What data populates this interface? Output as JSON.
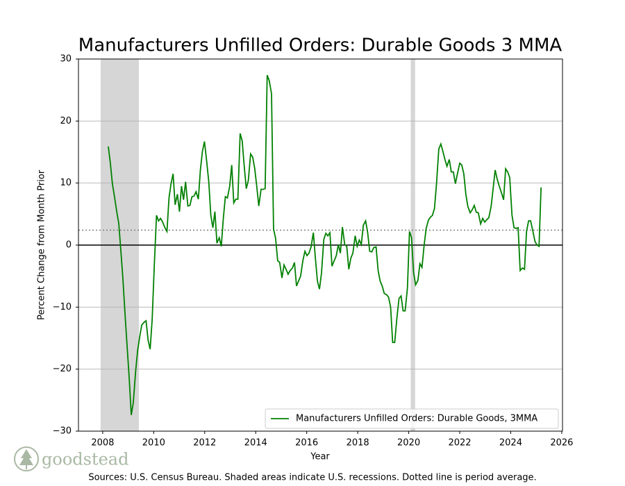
{
  "chart_data": {
    "type": "line",
    "title": "Manufacturers Unfilled Orders: Durable Goods 3 MMA",
    "xlabel": "Year",
    "ylabel": "Percent Change from Month Prior",
    "note": "Sources: U.S. Census Bureau. Shaded areas indicate U.S. recessions. Dotted line is period average.",
    "logo": "goodstead",
    "xlim": [
      2007.05,
      2026.03
    ],
    "ylim": [
      -30,
      30
    ],
    "xticks": [
      2008,
      2010,
      2012,
      2014,
      2016,
      2018,
      2020,
      2022,
      2024,
      2026
    ],
    "yticks": [
      {
        "value": -30,
        "label": "−30"
      },
      {
        "value": -20,
        "label": "−20"
      },
      {
        "value": -10,
        "label": "−10"
      },
      0,
      10,
      20,
      30
    ],
    "grid": "y",
    "legend": "lower right",
    "average": 2.4,
    "recessions": [
      [
        2007.92,
        2009.42
      ],
      [
        2020.08,
        2020.25
      ]
    ],
    "recession_color": "#d6d6d6",
    "series": [
      {
        "name": "Manufacturers Unfilled Orders: Durable Goods, 3MMA",
        "color": "#008000",
        "x": [
          2008.22,
          2008.3,
          2008.38,
          2008.47,
          2008.55,
          2008.63,
          2008.71,
          2008.79,
          2008.88,
          2008.96,
          2009.04,
          2009.12,
          2009.2,
          2009.29,
          2009.37,
          2009.45,
          2009.53,
          2009.61,
          2009.7,
          2009.78,
          2009.86,
          2009.94,
          2010.02,
          2010.11,
          2010.19,
          2010.27,
          2010.35,
          2010.43,
          2010.52,
          2010.6,
          2010.68,
          2010.76,
          2010.84,
          2010.93,
          2011.01,
          2011.09,
          2011.17,
          2011.25,
          2011.34,
          2011.42,
          2011.5,
          2011.58,
          2011.66,
          2011.75,
          2011.83,
          2011.91,
          2011.99,
          2012.07,
          2012.16,
          2012.24,
          2012.32,
          2012.4,
          2012.48,
          2012.57,
          2012.65,
          2012.73,
          2012.81,
          2012.89,
          2012.98,
          2013.06,
          2013.14,
          2013.22,
          2013.3,
          2013.39,
          2013.47,
          2013.55,
          2013.63,
          2013.71,
          2013.8,
          2013.88,
          2013.96,
          2014.04,
          2014.12,
          2014.21,
          2014.29,
          2014.37,
          2014.45,
          2014.53,
          2014.62,
          2014.7,
          2014.78,
          2014.86,
          2014.94,
          2015.03,
          2015.11,
          2015.19,
          2015.27,
          2015.35,
          2015.44,
          2015.52,
          2015.6,
          2015.68,
          2015.76,
          2015.85,
          2015.93,
          2016.01,
          2016.09,
          2016.17,
          2016.26,
          2016.34,
          2016.42,
          2016.5,
          2016.58,
          2016.67,
          2016.75,
          2016.83,
          2016.91,
          2016.99,
          2017.08,
          2017.16,
          2017.24,
          2017.32,
          2017.4,
          2017.49,
          2017.57,
          2017.65,
          2017.73,
          2017.81,
          2017.9,
          2017.98,
          2018.06,
          2018.14,
          2018.22,
          2018.31,
          2018.39,
          2018.47,
          2018.55,
          2018.63,
          2018.72,
          2018.8,
          2018.88,
          2018.96,
          2019.04,
          2019.13,
          2019.21,
          2019.29,
          2019.37,
          2019.45,
          2019.54,
          2019.62,
          2019.7,
          2019.78,
          2019.86,
          2019.95,
          2020.03,
          2020.11,
          2020.19,
          2020.27,
          2020.36,
          2020.44,
          2020.52,
          2020.6,
          2020.68,
          2020.77,
          2020.85,
          2020.93,
          2021.01,
          2021.09,
          2021.18,
          2021.26,
          2021.34,
          2021.42,
          2021.5,
          2021.59,
          2021.67,
          2021.75,
          2021.83,
          2021.91,
          2022,
          2022.08,
          2022.16,
          2022.24,
          2022.32,
          2022.41,
          2022.49,
          2022.57,
          2022.65,
          2022.73,
          2022.82,
          2022.9,
          2022.98,
          2023.06,
          2023.14,
          2023.23,
          2023.31,
          2023.39,
          2023.47,
          2023.55,
          2023.64,
          2023.72,
          2023.8,
          2023.88,
          2023.96,
          2024.05,
          2024.13,
          2024.21,
          2024.29,
          2024.37,
          2024.46,
          2024.54,
          2024.62,
          2024.7,
          2024.78,
          2024.87,
          2024.95,
          2025.03,
          2025.11,
          2025.19
        ],
        "values": [
          15.9,
          13.2,
          9.9,
          7.6,
          5.4,
          3.5,
          -0.8,
          -5.3,
          -11.4,
          -16.5,
          -21.5,
          -27.4,
          -25.4,
          -20.4,
          -17,
          -14.8,
          -12.9,
          -12.5,
          -12.2,
          -15.3,
          -16.8,
          -12,
          -3.6,
          4.8,
          3.9,
          4.3,
          3.7,
          2.9,
          2.2,
          7.6,
          9.9,
          11.5,
          6.5,
          8.2,
          5.4,
          9.5,
          7.3,
          10.2,
          6.3,
          6.4,
          7.8,
          7.9,
          8.6,
          7.4,
          12.1,
          15.1,
          16.7,
          13.8,
          10.2,
          4.8,
          2.8,
          5.4,
          0.3,
          1.2,
          -0.2,
          4.3,
          7.8,
          7.6,
          9.5,
          12.9,
          6.8,
          7.4,
          7.4,
          18,
          16.8,
          12.7,
          9.1,
          10.4,
          14.7,
          14.2,
          12.4,
          9.5,
          6.3,
          9,
          9,
          9.1,
          27.4,
          26.5,
          24.4,
          2.6,
          1.1,
          -2.5,
          -2.8,
          -5.3,
          -3.2,
          -3.9,
          -4.7,
          -4.1,
          -3.7,
          -2.8,
          -6.6,
          -5.8,
          -5,
          -2.5,
          -1,
          -1.7,
          -1.3,
          -0.3,
          2,
          -2.1,
          -5.8,
          -7.1,
          -4.5,
          0.9,
          1.9,
          1.5,
          2,
          -3.4,
          -2.5,
          -1.7,
          0.1,
          -1.3,
          2.9,
          0.1,
          -0.2,
          -3.9,
          -2.1,
          -1.3,
          1.5,
          -0.2,
          0.8,
          0.1,
          3.2,
          3.9,
          2,
          -1,
          -1.1,
          -0.4,
          -0.3,
          -4.1,
          -5.8,
          -6.6,
          -7.8,
          -8,
          -8.4,
          -10,
          -15.7,
          -15.7,
          -11.6,
          -8.6,
          -8.2,
          -10.6,
          -10.6,
          -6.9,
          2.2,
          1.2,
          -4.4,
          -6.4,
          -5.7,
          -3,
          -3.6,
          -0.2,
          2.6,
          4,
          4.5,
          4.8,
          5.9,
          9.9,
          15.5,
          16.3,
          15.1,
          13.8,
          12.7,
          13.8,
          11.8,
          11.8,
          9.9,
          11.5,
          13.2,
          12.9,
          11.5,
          8.2,
          6.2,
          5.2,
          5.7,
          6.4,
          5.3,
          5.2,
          3.4,
          4.3,
          3.7,
          4.1,
          4.4,
          6.2,
          9.1,
          12.1,
          10.6,
          9.5,
          8.4,
          7.3,
          12.3,
          11.8,
          10.9,
          4.8,
          2.8,
          2.7,
          2.8,
          -4.1,
          -3.7,
          -3.9,
          2.2,
          3.9,
          3.9,
          2.2,
          0.6,
          0,
          -0.2,
          9.3
        ]
      }
    ]
  }
}
